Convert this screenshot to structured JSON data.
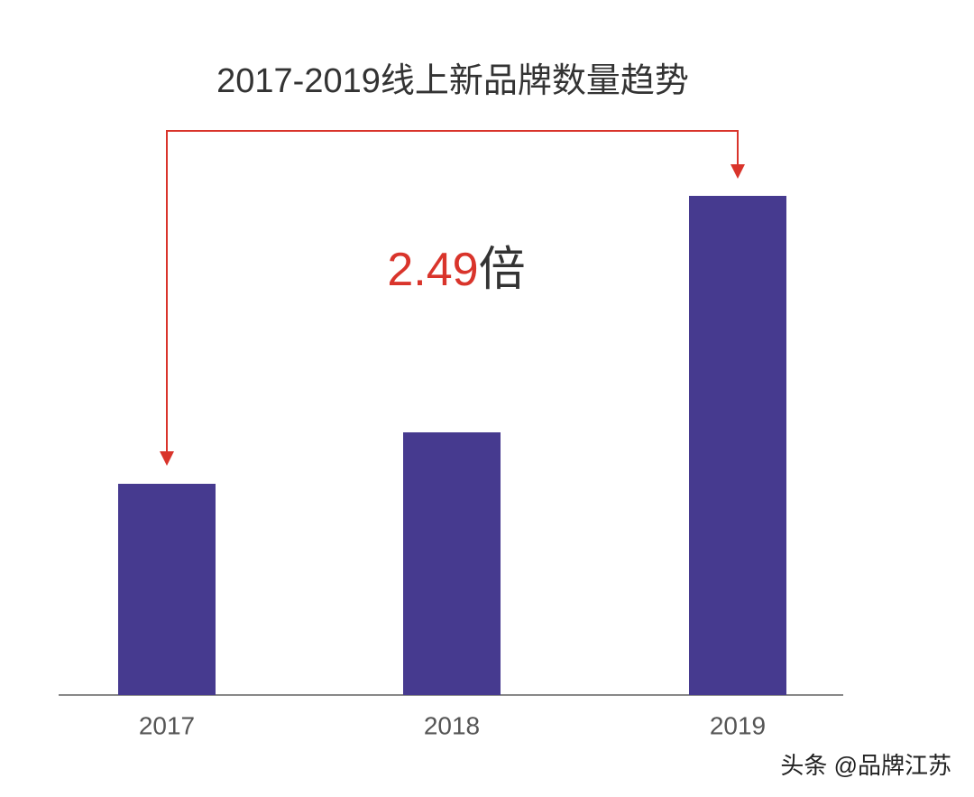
{
  "chart_data": {
    "type": "bar",
    "title": "2017-2019线上新品牌数量趋势",
    "categories": [
      "2017",
      "2018",
      "2019"
    ],
    "values": [
      234,
      291,
      553
    ],
    "color": "#463a8f",
    "annotation": {
      "text": "2.49",
      "suffix": "倍",
      "color": "#d9342b"
    },
    "watermark": "头条 @品牌江苏"
  }
}
